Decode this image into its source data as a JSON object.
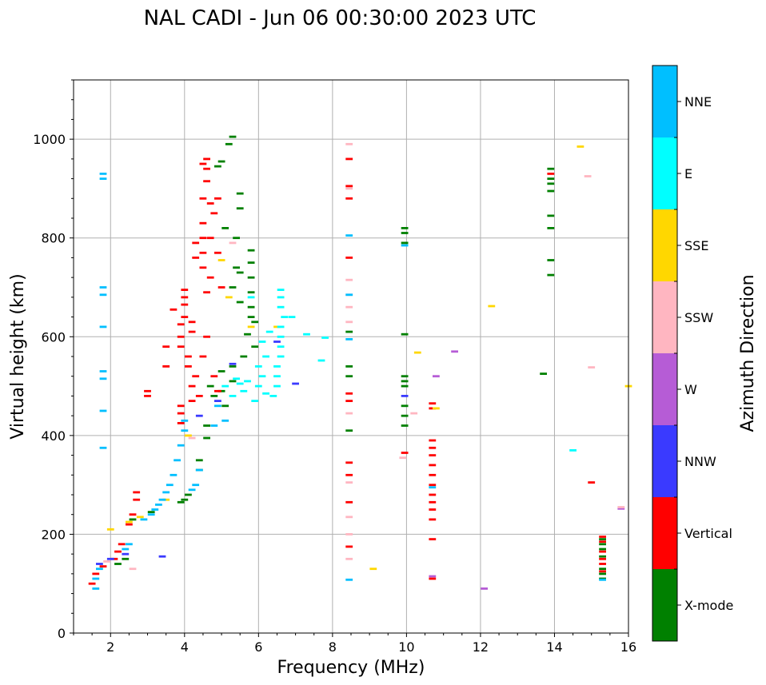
{
  "chart_data": {
    "type": "scatter",
    "title": "NAL CADI - Jun 06 00:30:00 2023 UTC",
    "xlabel": "Frequency (MHz)",
    "ylabel": "Virtual height (km)",
    "xlim": [
      1,
      16
    ],
    "ylim": [
      0,
      1120
    ],
    "xticks": [
      2,
      4,
      6,
      8,
      10,
      12,
      14,
      16
    ],
    "yticks": [
      0,
      200,
      400,
      600,
      800,
      1000
    ],
    "grid": true,
    "colorbar": {
      "label": "Azimuth Direction",
      "position": "right",
      "categories": [
        "X-mode",
        "Vertical",
        "NNW",
        "W",
        "SSW",
        "SSE",
        "E",
        "NNE"
      ],
      "colors": [
        "#008000",
        "#ff0000",
        "#3a3aff",
        "#b65cd6",
        "#ffb6c1",
        "#ffd700",
        "#00ffff",
        "#00bfff"
      ]
    },
    "series": [
      {
        "name": "X-mode",
        "points": [
          [
            5.3,
            1005
          ],
          [
            5.2,
            990
          ],
          [
            5.0,
            955
          ],
          [
            4.9,
            945
          ],
          [
            5.5,
            890
          ],
          [
            5.5,
            860
          ],
          [
            5.4,
            800
          ],
          [
            5.1,
            820
          ],
          [
            5.4,
            740
          ],
          [
            5.5,
            730
          ],
          [
            5.3,
            700
          ],
          [
            5.5,
            670
          ],
          [
            5.8,
            775
          ],
          [
            5.8,
            750
          ],
          [
            5.8,
            720
          ],
          [
            5.8,
            690
          ],
          [
            5.8,
            660
          ],
          [
            5.8,
            640
          ],
          [
            5.9,
            630
          ],
          [
            5.7,
            605
          ],
          [
            5.9,
            580
          ],
          [
            5.6,
            560
          ],
          [
            5.3,
            540
          ],
          [
            5.0,
            530
          ],
          [
            5.3,
            510
          ],
          [
            5.0,
            490
          ],
          [
            4.8,
            480
          ],
          [
            4.7,
            500
          ],
          [
            5.1,
            460
          ],
          [
            4.6,
            420
          ],
          [
            4.6,
            395
          ],
          [
            4.4,
            350
          ],
          [
            4.4,
            330
          ],
          [
            4.1,
            280
          ],
          [
            4.0,
            270
          ],
          [
            3.9,
            265
          ],
          [
            3.1,
            245
          ],
          [
            2.6,
            230
          ],
          [
            2.4,
            150
          ],
          [
            2.2,
            140
          ],
          [
            8.45,
            610
          ],
          [
            8.45,
            540
          ],
          [
            8.45,
            520
          ],
          [
            8.45,
            410
          ],
          [
            9.95,
            820
          ],
          [
            9.95,
            810
          ],
          [
            9.95,
            790
          ],
          [
            9.95,
            605
          ],
          [
            9.95,
            520
          ],
          [
            9.95,
            510
          ],
          [
            9.95,
            500
          ],
          [
            9.95,
            460
          ],
          [
            9.95,
            440
          ],
          [
            9.95,
            420
          ],
          [
            13.9,
            940
          ],
          [
            13.9,
            920
          ],
          [
            13.9,
            910
          ],
          [
            13.9,
            895
          ],
          [
            13.9,
            845
          ],
          [
            13.9,
            820
          ],
          [
            13.9,
            755
          ],
          [
            13.9,
            725
          ],
          [
            13.7,
            525
          ],
          [
            15.3,
            190
          ],
          [
            15.3,
            180
          ],
          [
            15.3,
            170
          ],
          [
            15.3,
            155
          ],
          [
            15.3,
            130
          ],
          [
            15.3,
            120
          ],
          [
            15.3,
            110
          ]
        ]
      },
      {
        "name": "Vertical",
        "points": [
          [
            4.6,
            960
          ],
          [
            4.5,
            950
          ],
          [
            4.6,
            940
          ],
          [
            4.6,
            915
          ],
          [
            4.5,
            880
          ],
          [
            4.7,
            870
          ],
          [
            4.9,
            880
          ],
          [
            4.8,
            850
          ],
          [
            4.5,
            830
          ],
          [
            4.5,
            800
          ],
          [
            4.7,
            800
          ],
          [
            4.5,
            770
          ],
          [
            4.3,
            790
          ],
          [
            4.3,
            760
          ],
          [
            4.5,
            740
          ],
          [
            4.9,
            770
          ],
          [
            5.0,
            700
          ],
          [
            4.7,
            720
          ],
          [
            4.6,
            690
          ],
          [
            4.0,
            695
          ],
          [
            4.0,
            680
          ],
          [
            4.0,
            665
          ],
          [
            4.0,
            640
          ],
          [
            3.9,
            625
          ],
          [
            3.9,
            600
          ],
          [
            3.9,
            580
          ],
          [
            4.2,
            630
          ],
          [
            4.2,
            610
          ],
          [
            4.1,
            560
          ],
          [
            4.1,
            540
          ],
          [
            4.3,
            520
          ],
          [
            4.2,
            500
          ],
          [
            4.4,
            480
          ],
          [
            4.2,
            470
          ],
          [
            3.9,
            460
          ],
          [
            3.9,
            445
          ],
          [
            3.9,
            425
          ],
          [
            3.7,
            655
          ],
          [
            3.5,
            580
          ],
          [
            3.5,
            540
          ],
          [
            4.6,
            600
          ],
          [
            4.5,
            560
          ],
          [
            4.8,
            520
          ],
          [
            4.9,
            490
          ],
          [
            3.0,
            490
          ],
          [
            3.0,
            480
          ],
          [
            2.7,
            285
          ],
          [
            2.7,
            270
          ],
          [
            2.6,
            240
          ],
          [
            2.5,
            220
          ],
          [
            2.3,
            180
          ],
          [
            2.2,
            165
          ],
          [
            2.1,
            150
          ],
          [
            1.8,
            135
          ],
          [
            1.6,
            120
          ],
          [
            1.5,
            100
          ],
          [
            8.45,
            960
          ],
          [
            8.45,
            905
          ],
          [
            8.45,
            880
          ],
          [
            8.45,
            760
          ],
          [
            8.45,
            485
          ],
          [
            8.45,
            470
          ],
          [
            8.45,
            345
          ],
          [
            8.45,
            320
          ],
          [
            8.45,
            265
          ],
          [
            8.45,
            175
          ],
          [
            9.95,
            365
          ],
          [
            10.7,
            465
          ],
          [
            10.7,
            455
          ],
          [
            10.7,
            390
          ],
          [
            10.7,
            375
          ],
          [
            10.7,
            360
          ],
          [
            10.7,
            340
          ],
          [
            10.7,
            320
          ],
          [
            10.7,
            300
          ],
          [
            10.7,
            280
          ],
          [
            10.7,
            265
          ],
          [
            10.7,
            250
          ],
          [
            10.7,
            230
          ],
          [
            10.7,
            190
          ],
          [
            10.7,
            110
          ],
          [
            13.9,
            930
          ],
          [
            15.0,
            305
          ],
          [
            15.3,
            195
          ],
          [
            15.3,
            185
          ],
          [
            15.3,
            165
          ],
          [
            15.3,
            150
          ],
          [
            15.3,
            140
          ],
          [
            15.3,
            125
          ]
        ]
      },
      {
        "name": "NNW",
        "points": [
          [
            5.3,
            545
          ],
          [
            4.9,
            470
          ],
          [
            4.4,
            440
          ],
          [
            6.5,
            590
          ],
          [
            7.0,
            505
          ],
          [
            2.4,
            160
          ],
          [
            2.0,
            150
          ],
          [
            1.7,
            140
          ],
          [
            3.4,
            155
          ],
          [
            9.95,
            480
          ]
        ]
      },
      {
        "name": "W",
        "points": [
          [
            10.8,
            520
          ],
          [
            11.3,
            570
          ],
          [
            10.7,
            115
          ],
          [
            12.1,
            90
          ],
          [
            15.8,
            252
          ]
        ]
      },
      {
        "name": "SSW",
        "points": [
          [
            8.45,
            990
          ],
          [
            8.45,
            900
          ],
          [
            8.45,
            715
          ],
          [
            8.45,
            685
          ],
          [
            8.45,
            660
          ],
          [
            8.45,
            630
          ],
          [
            8.45,
            445
          ],
          [
            8.45,
            305
          ],
          [
            8.45,
            235
          ],
          [
            8.45,
            200
          ],
          [
            8.45,
            150
          ],
          [
            9.9,
            355
          ],
          [
            10.2,
            445
          ],
          [
            14.9,
            925
          ],
          [
            15.0,
            538
          ],
          [
            15.8,
            255
          ],
          [
            4.2,
            395
          ],
          [
            2.6,
            130
          ],
          [
            1.9,
            145
          ],
          [
            5.3,
            790
          ]
        ]
      },
      {
        "name": "SSE",
        "points": [
          [
            14.7,
            985
          ],
          [
            12.3,
            662
          ],
          [
            10.3,
            568
          ],
          [
            10.8,
            455
          ],
          [
            9.1,
            130
          ],
          [
            16.0,
            500
          ],
          [
            6.5,
            620
          ],
          [
            5.8,
            620
          ],
          [
            5.0,
            755
          ],
          [
            5.2,
            680
          ],
          [
            4.1,
            400
          ],
          [
            3.5,
            270
          ],
          [
            2.8,
            235
          ],
          [
            2.5,
            225
          ],
          [
            2.0,
            210
          ]
        ]
      },
      {
        "name": "E",
        "points": [
          [
            6.6,
            695
          ],
          [
            6.6,
            680
          ],
          [
            6.6,
            660
          ],
          [
            6.7,
            640
          ],
          [
            6.6,
            620
          ],
          [
            6.6,
            600
          ],
          [
            6.6,
            580
          ],
          [
            6.6,
            560
          ],
          [
            6.5,
            540
          ],
          [
            6.5,
            520
          ],
          [
            6.5,
            500
          ],
          [
            6.4,
            480
          ],
          [
            6.3,
            610
          ],
          [
            6.1,
            590
          ],
          [
            6.2,
            560
          ],
          [
            6.0,
            540
          ],
          [
            6.1,
            520
          ],
          [
            6.0,
            500
          ],
          [
            6.2,
            485
          ],
          [
            5.9,
            470
          ],
          [
            5.7,
            510
          ],
          [
            5.5,
            505
          ],
          [
            5.4,
            515
          ],
          [
            5.6,
            490
          ],
          [
            5.3,
            480
          ],
          [
            5.1,
            500
          ],
          [
            5.8,
            680
          ],
          [
            7.8,
            598
          ],
          [
            7.7,
            552
          ],
          [
            14.5,
            370
          ],
          [
            7.3,
            605
          ],
          [
            6.9,
            640
          ]
        ]
      },
      {
        "name": "NNE",
        "points": [
          [
            1.8,
            930
          ],
          [
            1.8,
            920
          ],
          [
            1.8,
            700
          ],
          [
            1.8,
            685
          ],
          [
            1.8,
            620
          ],
          [
            1.8,
            530
          ],
          [
            1.8,
            515
          ],
          [
            1.8,
            450
          ],
          [
            1.8,
            375
          ],
          [
            4.0,
            430
          ],
          [
            4.0,
            410
          ],
          [
            3.9,
            380
          ],
          [
            3.8,
            350
          ],
          [
            3.7,
            320
          ],
          [
            3.6,
            300
          ],
          [
            3.5,
            285
          ],
          [
            3.4,
            270
          ],
          [
            3.3,
            260
          ],
          [
            3.2,
            250
          ],
          [
            3.1,
            240
          ],
          [
            2.9,
            230
          ],
          [
            2.5,
            180
          ],
          [
            2.4,
            170
          ],
          [
            1.7,
            130
          ],
          [
            1.6,
            110
          ],
          [
            1.6,
            90
          ],
          [
            4.9,
            460
          ],
          [
            5.1,
            430
          ],
          [
            4.8,
            420
          ],
          [
            4.4,
            330
          ],
          [
            4.3,
            300
          ],
          [
            4.2,
            290
          ],
          [
            8.45,
            805
          ],
          [
            8.45,
            685
          ],
          [
            8.45,
            595
          ],
          [
            8.45,
            108
          ],
          [
            9.95,
            785
          ],
          [
            10.7,
            295
          ],
          [
            15.3,
            108
          ]
        ]
      }
    ]
  }
}
